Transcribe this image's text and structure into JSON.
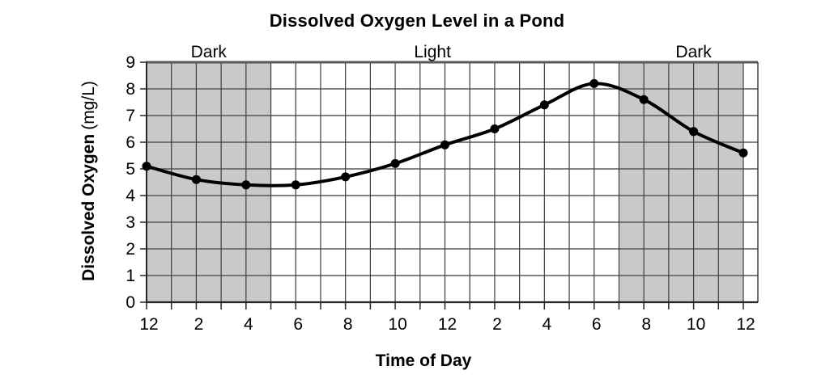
{
  "chart_data": {
    "type": "line",
    "title": "Dissolved Oxygen Level in a Pond",
    "xlabel": "Time of Day",
    "ylabel_main": "Dissolved Oxygen",
    "ylabel_unit": "(mg/L)",
    "ylabel_full": "Dissolved Oxygen (mg/L)",
    "x_hours": [
      0,
      2,
      4,
      6,
      8,
      10,
      12,
      14,
      16,
      18,
      20,
      22,
      24
    ],
    "x_tick_labels": [
      "12",
      "2",
      "4",
      "6",
      "8",
      "10",
      "12",
      "2",
      "4",
      "6",
      "8",
      "10",
      "12"
    ],
    "values": [
      5.1,
      4.6,
      4.4,
      4.4,
      4.7,
      5.2,
      5.9,
      6.5,
      7.4,
      8.2,
      7.6,
      6.4,
      5.6
    ],
    "y_ticks": [
      "0",
      "1",
      "2",
      "3",
      "4",
      "5",
      "6",
      "7",
      "8",
      "9"
    ],
    "ylim": [
      0,
      9
    ],
    "xlim_hours": [
      0,
      24
    ],
    "grid": "on",
    "legend": "none",
    "regions": [
      {
        "label": "Dark",
        "start_hour": 0,
        "end_hour": 5,
        "shaded": true
      },
      {
        "label": "Light",
        "start_hour": 5,
        "end_hour": 19,
        "shaded": false
      },
      {
        "label": "Dark",
        "start_hour": 19,
        "end_hour": 24,
        "shaded": true
      }
    ],
    "colors": {
      "background": "#ffffff",
      "shade": "#c9c9c9",
      "line": "#000000",
      "marker": "#000000",
      "grid_vertical": "#3d3d3d",
      "grid_horizontal": "#595959",
      "axis": "#262626",
      "text": "#000000"
    }
  }
}
